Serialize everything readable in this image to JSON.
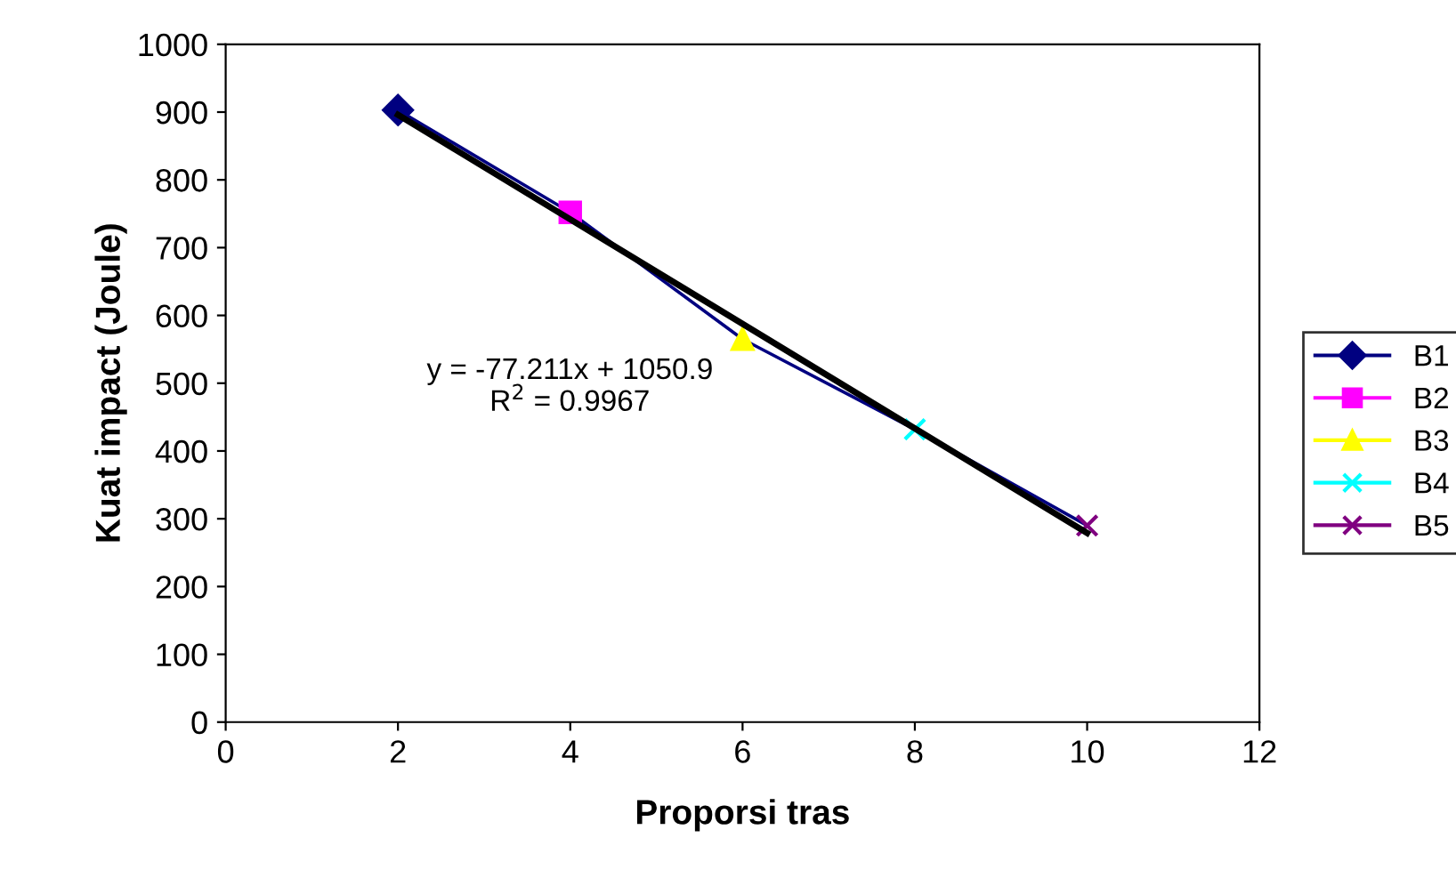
{
  "chart_data": {
    "type": "line",
    "xlabel": "Proporsi tras",
    "ylabel": "Kuat impact (Joule)",
    "xlim": [
      0,
      12
    ],
    "xticks": [
      0,
      2,
      4,
      6,
      8,
      10,
      12
    ],
    "ylim": [
      0,
      1000
    ],
    "yticks": [
      0,
      100,
      200,
      300,
      400,
      500,
      600,
      700,
      800,
      900,
      1000
    ],
    "grid": false,
    "legend": "right",
    "line_style": "solid",
    "annotations": [
      "y = -77.211x + 1050.9\nR$^{2}$ = 0.9967"
    ],
    "series": [
      {
        "x": [
          2,
          4,
          6,
          8,
          10
        ],
        "values": [
          903,
          752,
          565,
          432,
          290
        ],
        "color": "#000080",
        "marker": "none"
      },
      {
        "name": "B1",
        "type": "scatter",
        "x": [
          2
        ],
        "values": [
          903
        ],
        "color": "#000080",
        "marker": "diamond"
      },
      {
        "name": "B2",
        "type": "scatter",
        "x": [
          4
        ],
        "values": [
          752
        ],
        "color": "#ff00ff",
        "marker": "square"
      },
      {
        "name": "B3",
        "type": "scatter",
        "x": [
          6
        ],
        "values": [
          565
        ],
        "color": "#ffff00",
        "marker": "triangle"
      },
      {
        "name": "B4",
        "type": "scatter",
        "x": [
          8
        ],
        "values": [
          432
        ],
        "color": "#00ffff",
        "marker": "cross"
      },
      {
        "name": "B5",
        "type": "scatter",
        "x": [
          10
        ],
        "values": [
          290
        ],
        "color": "#800080",
        "marker": "cross"
      },
      {
        "x": [
          2,
          10
        ],
        "values": [
          896,
          279
        ],
        "color": "#000000",
        "marker": "none"
      }
    ]
  }
}
